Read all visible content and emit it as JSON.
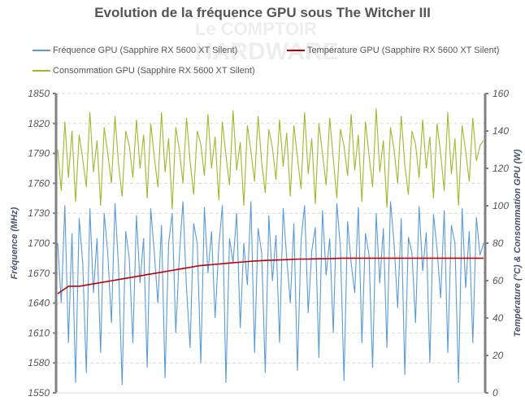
{
  "chart_data": {
    "type": "line",
    "title": "Evolution de la fréquence GPU sous The Witcher III",
    "ylabel": "Fréquence (MHz)",
    "y2label": "Température (°C) & Consommation GPU (W)",
    "ylim": [
      1550,
      1850
    ],
    "y2lim": [
      0,
      160
    ],
    "yticks": [
      "1850",
      "1820",
      "1790",
      "1760",
      "1730",
      "1700",
      "1670",
      "1640",
      "1610",
      "1580",
      "1550"
    ],
    "y2ticks": [
      "160",
      "140",
      "120",
      "100",
      "80",
      "60",
      "40",
      "20",
      "0"
    ],
    "grid": true,
    "legend_position": "top",
    "watermark": "Le Comptoir Hardware",
    "series": [
      {
        "name": "Fréquence GPU (Sapphire RX 5600 XT Silent)",
        "axis": "left",
        "color": "#5b9bd5",
        "values": [
          1700,
          1640,
          1738,
          1600,
          1710,
          1560,
          1725,
          1680,
          1570,
          1735,
          1650,
          1705,
          1590,
          1730,
          1690,
          1620,
          1740,
          1675,
          1558,
          1712,
          1685,
          1600,
          1728,
          1660,
          1705,
          1575,
          1735,
          1690,
          1640,
          1718,
          1565,
          1700,
          1730,
          1610,
          1688,
          1742,
          1655,
          1595,
          1720,
          1700,
          1580,
          1736,
          1670,
          1712,
          1625,
          1696,
          1738,
          1560,
          1705,
          1680,
          1730,
          1615,
          1700,
          1658,
          1742,
          1590,
          1715,
          1690,
          1570,
          1728,
          1662,
          1708,
          1600,
          1735,
          1685,
          1640,
          1720,
          1572,
          1702,
          1738,
          1630,
          1692,
          1716,
          1585,
          1733,
          1668,
          1705,
          1610,
          1740,
          1695,
          1562,
          1722,
          1680,
          1650,
          1736,
          1600,
          1710,
          1688,
          1575,
          1730,
          1660,
          1715,
          1595,
          1742,
          1700,
          1635,
          1725,
          1568,
          1706,
          1690,
          1620,
          1737,
          1672,
          1711,
          1580,
          1729,
          1694,
          1645,
          1733,
          1590,
          1718,
          1700,
          1560,
          1735,
          1655,
          1712,
          1600,
          1726,
          1688,
          1700
        ]
      },
      {
        "name": "Température GPU (Sapphire RX 5600 XT Silent)",
        "axis": "right",
        "color": "#c00000",
        "values": [
          53,
          57,
          57,
          58,
          59,
          60,
          61,
          62,
          63,
          64,
          65,
          66,
          67,
          68,
          68.5,
          69,
          69.5,
          70,
          70.5,
          70.8,
          71,
          71.2,
          71.5,
          71.5,
          71.7,
          71.8,
          72,
          72,
          72,
          72,
          72,
          72,
          72,
          72,
          72,
          72,
          72,
          72,
          72,
          72
        ]
      },
      {
        "name": "Consommation GPU (Sapphire RX 5600 XT Silent)",
        "axis": "right",
        "color": "#9bbb2a",
        "values": [
          130,
          108,
          145,
          115,
          140,
          102,
          138,
          125,
          110,
          150,
          118,
          135,
          100,
          142,
          128,
          112,
          148,
          122,
          105,
          140,
          132,
          115,
          146,
          120,
          138,
          104,
          144,
          126,
          110,
          150,
          118,
          136,
          98,
          142,
          130,
          112,
          147,
          124,
          106,
          140,
          133,
          116,
          149,
          120,
          137,
          103,
          145,
          127,
          111,
          151,
          119,
          134,
          100,
          143,
          129,
          113,
          148,
          123,
          107,
          141,
          131,
          114,
          146,
          121,
          139,
          105,
          143,
          126,
          109,
          150,
          117,
          136,
          101,
          144,
          128,
          111,
          147,
          125,
          104,
          141,
          132,
          116,
          149,
          119,
          138,
          102,
          145,
          127,
          110,
          152,
          118,
          135,
          99,
          142,
          130,
          112,
          148,
          122,
          106,
          140,
          133,
          115,
          146,
          120,
          137,
          104,
          144,
          128,
          108,
          150,
          117,
          136,
          100,
          143,
          129,
          113,
          147,
          124,
          132,
          135
        ]
      }
    ]
  }
}
